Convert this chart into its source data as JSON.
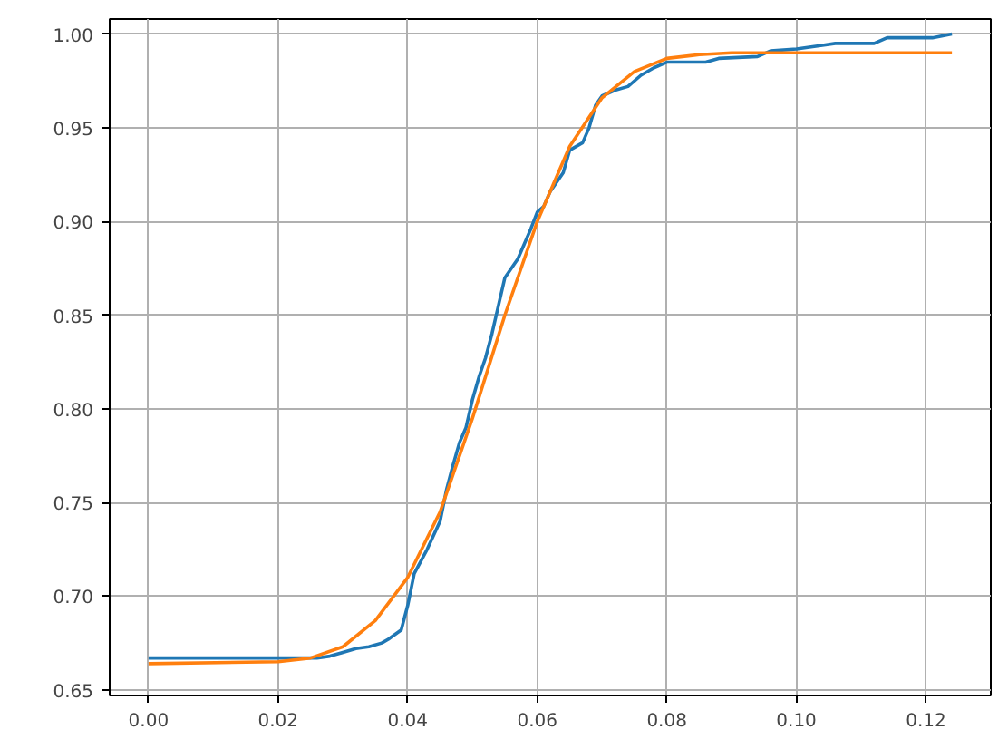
{
  "chart_data": {
    "type": "line",
    "xlim": [
      -0.006,
      0.13
    ],
    "ylim": [
      0.647,
      1.008
    ],
    "xticks": [
      {
        "value": 0,
        "label": "0.00"
      },
      {
        "value": 0.02,
        "label": "0.02"
      },
      {
        "value": 0.04,
        "label": "0.04"
      },
      {
        "value": 0.06,
        "label": "0.06"
      },
      {
        "value": 0.08,
        "label": "0.08"
      },
      {
        "value": 0.1,
        "label": "0.10"
      },
      {
        "value": 0.12,
        "label": "0.12"
      }
    ],
    "yticks": [
      {
        "value": 0.65,
        "label": "0.65"
      },
      {
        "value": 0.7,
        "label": "0.70"
      },
      {
        "value": 0.75,
        "label": "0.75"
      },
      {
        "value": 0.8,
        "label": "0.80"
      },
      {
        "value": 0.85,
        "label": "0.85"
      },
      {
        "value": 0.9,
        "label": "0.90"
      },
      {
        "value": 0.95,
        "label": "0.95"
      },
      {
        "value": 1.0,
        "label": "1.00"
      }
    ],
    "grid": true,
    "line_style": "solid",
    "marker": "none",
    "series": [
      {
        "color": "#1f77b4",
        "x": [
          0,
          0.026,
          0.028,
          0.03,
          0.032,
          0.034,
          0.036,
          0.037,
          0.039,
          0.04,
          0.041,
          0.043,
          0.045,
          0.046,
          0.047,
          0.048,
          0.049,
          0.05,
          0.051,
          0.052,
          0.053,
          0.054,
          0.055,
          0.057,
          0.058,
          0.059,
          0.06,
          0.061,
          0.062,
          0.064,
          0.065,
          0.067,
          0.068,
          0.069,
          0.07,
          0.072,
          0.074,
          0.076,
          0.078,
          0.08,
          0.086,
          0.088,
          0.094,
          0.096,
          0.1,
          0.104,
          0.106,
          0.112,
          0.114,
          0.121,
          0.124
        ],
        "values": [
          0.667,
          0.667,
          0.668,
          0.67,
          0.672,
          0.673,
          0.675,
          0.677,
          0.682,
          0.695,
          0.712,
          0.725,
          0.74,
          0.757,
          0.77,
          0.782,
          0.79,
          0.805,
          0.817,
          0.827,
          0.84,
          0.855,
          0.87,
          0.88,
          0.888,
          0.896,
          0.905,
          0.908,
          0.916,
          0.926,
          0.938,
          0.942,
          0.95,
          0.962,
          0.967,
          0.97,
          0.972,
          0.978,
          0.982,
          0.985,
          0.985,
          0.987,
          0.988,
          0.991,
          0.992,
          0.994,
          0.995,
          0.995,
          0.998,
          0.998,
          1.0
        ]
      },
      {
        "color": "#ff7f0e",
        "x": [
          0,
          0.02,
          0.025,
          0.03,
          0.035,
          0.04,
          0.045,
          0.05,
          0.055,
          0.06,
          0.065,
          0.07,
          0.075,
          0.08,
          0.085,
          0.09,
          0.124
        ],
        "values": [
          0.664,
          0.665,
          0.667,
          0.673,
          0.687,
          0.71,
          0.745,
          0.795,
          0.85,
          0.9,
          0.94,
          0.966,
          0.98,
          0.987,
          0.989,
          0.99,
          0.99
        ]
      }
    ]
  }
}
